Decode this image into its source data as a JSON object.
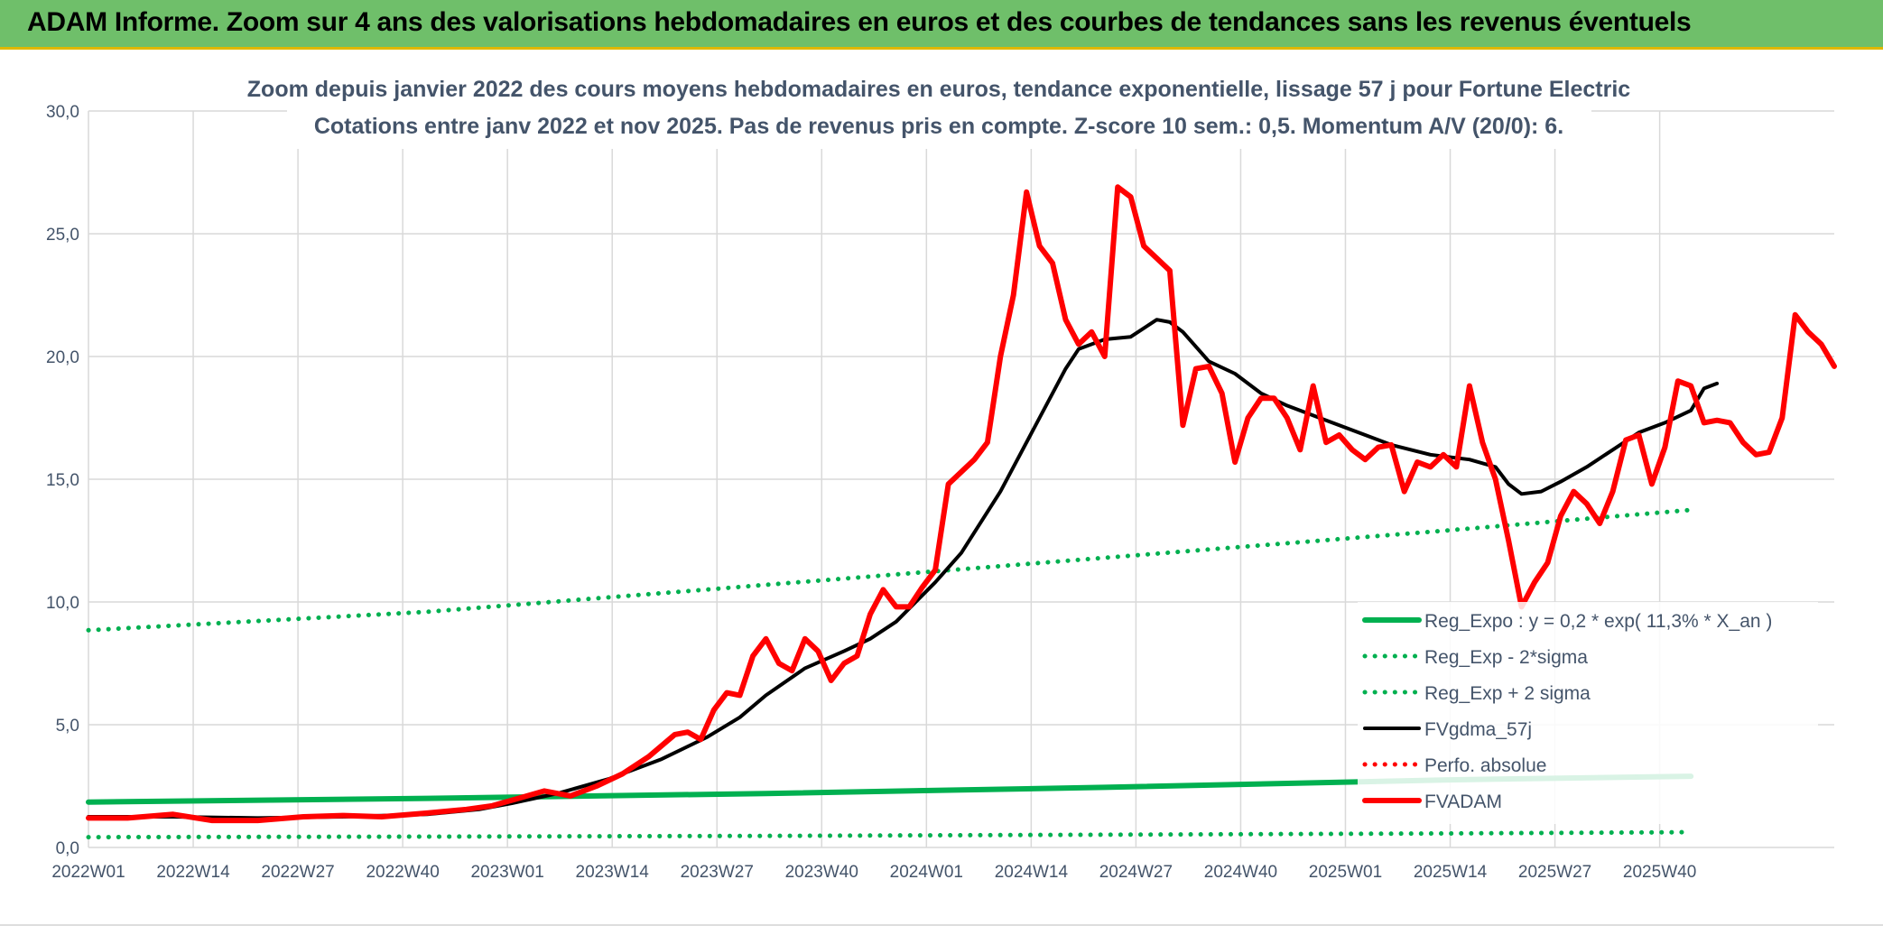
{
  "banner": {
    "title": "ADAM Informe. Zoom sur 4 ans des valorisations hebdomadaires en euros et des courbes de tendances sans les revenus éventuels"
  },
  "colors": {
    "banner_bg": "#6fbf6a",
    "reg_expo": "#00b050",
    "fvgdma": "#000000",
    "fvadam": "#ff0000",
    "perfo": "#ff0000",
    "grid": "#d9d9d9"
  },
  "chart_data": {
    "type": "line",
    "title": "Zoom depuis janvier 2022 des cours moyens hebdomadaires en euros, tendance exponentielle, lissage 57 j pour Fortune Electric",
    "subtitle": "Cotations entre janv 2022 et nov 2025. Pas de revenus pris en compte. Z-score 10 sem.: 0,5. Momentum A/V (20/0): 6.",
    "xlabel": "",
    "ylabel": "",
    "ylim": [
      0,
      30
    ],
    "yticks": [
      "0,0",
      "5,0",
      "10,0",
      "15,0",
      "20,0",
      "25,0",
      "30,0"
    ],
    "xticks": [
      "2022W01",
      "2022W14",
      "2022W27",
      "2022W40",
      "2023W01",
      "2023W14",
      "2023W27",
      "2023W40",
      "2024W01",
      "2024W14",
      "2024W27",
      "2024W40",
      "2025W01",
      "2025W14",
      "2025W27",
      "2025W40"
    ],
    "grid": true,
    "legend_position": "bottom-right",
    "legend": [
      "Reg_Expo : y = 0,2 * exp( 11,3% *  X_an )",
      "Reg_Exp - 2*sigma",
      "Reg_Exp + 2 sigma",
      "FVgdma_57j",
      "Perfo. absolue",
      "FVADAM"
    ],
    "series": [
      {
        "name": "Reg_Expo : y = 0,2 * exp( 11,3% *  X_an )",
        "style": "solid-thick",
        "color": "#00b050",
        "points": [
          [
            0,
            1.85
          ],
          [
            52,
            2.0
          ],
          [
            104,
            2.2
          ],
          [
            156,
            2.45
          ],
          [
            208,
            2.75
          ],
          [
            246,
            2.9
          ]
        ]
      },
      {
        "name": "Reg_Exp - 2*sigma",
        "style": "dotted",
        "color": "#00b050",
        "points": [
          [
            0,
            0.42
          ],
          [
            52,
            0.44
          ],
          [
            104,
            0.47
          ],
          [
            156,
            0.52
          ],
          [
            208,
            0.57
          ],
          [
            246,
            0.62
          ]
        ]
      },
      {
        "name": "Reg_Exp + 2 sigma",
        "style": "dotted",
        "color": "#00b050",
        "points": [
          [
            0,
            8.85
          ],
          [
            52,
            9.6
          ],
          [
            104,
            10.7
          ],
          [
            156,
            11.8
          ],
          [
            208,
            12.9
          ],
          [
            246,
            13.75
          ]
        ]
      },
      {
        "name": "FVgdma_57j",
        "style": "solid",
        "color": "#000000",
        "points": [
          [
            0,
            1.25
          ],
          [
            13,
            1.25
          ],
          [
            26,
            1.2
          ],
          [
            39,
            1.25
          ],
          [
            52,
            1.35
          ],
          [
            60,
            1.55
          ],
          [
            65,
            1.8
          ],
          [
            72,
            2.2
          ],
          [
            80,
            2.8
          ],
          [
            88,
            3.6
          ],
          [
            95,
            4.5
          ],
          [
            100,
            5.3
          ],
          [
            104,
            6.2
          ],
          [
            110,
            7.3
          ],
          [
            116,
            8.0
          ],
          [
            120,
            8.5
          ],
          [
            124,
            9.2
          ],
          [
            130,
            10.8
          ],
          [
            134,
            12.0
          ],
          [
            140,
            14.5
          ],
          [
            146,
            17.5
          ],
          [
            150,
            19.5
          ],
          [
            152,
            20.3
          ],
          [
            156,
            20.7
          ],
          [
            160,
            20.8
          ],
          [
            164,
            21.5
          ],
          [
            166,
            21.4
          ],
          [
            168,
            21.0
          ],
          [
            172,
            19.8
          ],
          [
            176,
            19.3
          ],
          [
            180,
            18.5
          ],
          [
            184,
            18.0
          ],
          [
            190,
            17.4
          ],
          [
            196,
            16.8
          ],
          [
            200,
            16.4
          ],
          [
            206,
            16.0
          ],
          [
            212,
            15.8
          ],
          [
            216,
            15.5
          ],
          [
            218,
            14.8
          ],
          [
            220,
            14.4
          ],
          [
            223,
            14.5
          ],
          [
            226,
            14.9
          ],
          [
            230,
            15.5
          ],
          [
            234,
            16.2
          ],
          [
            238,
            16.9
          ],
          [
            242,
            17.3
          ],
          [
            246,
            17.8
          ],
          [
            248,
            18.7
          ],
          [
            250,
            18.9
          ]
        ]
      },
      {
        "name": "FVADAM",
        "style": "solid-thick",
        "color": "#ff0000",
        "points": [
          [
            0,
            1.2
          ],
          [
            6,
            1.2
          ],
          [
            13,
            1.35
          ],
          [
            19,
            1.1
          ],
          [
            26,
            1.1
          ],
          [
            33,
            1.25
          ],
          [
            39,
            1.3
          ],
          [
            45,
            1.25
          ],
          [
            52,
            1.4
          ],
          [
            58,
            1.55
          ],
          [
            62,
            1.7
          ],
          [
            66,
            2.0
          ],
          [
            70,
            2.3
          ],
          [
            74,
            2.1
          ],
          [
            78,
            2.5
          ],
          [
            82,
            3.0
          ],
          [
            86,
            3.7
          ],
          [
            90,
            4.6
          ],
          [
            92,
            4.7
          ],
          [
            94,
            4.4
          ],
          [
            96,
            5.6
          ],
          [
            98,
            6.3
          ],
          [
            100,
            6.2
          ],
          [
            102,
            7.8
          ],
          [
            104,
            8.5
          ],
          [
            106,
            7.5
          ],
          [
            108,
            7.2
          ],
          [
            110,
            8.5
          ],
          [
            112,
            8.0
          ],
          [
            114,
            6.8
          ],
          [
            116,
            7.5
          ],
          [
            118,
            7.8
          ],
          [
            120,
            9.5
          ],
          [
            122,
            10.5
          ],
          [
            124,
            9.8
          ],
          [
            126,
            9.8
          ],
          [
            128,
            10.6
          ],
          [
            130,
            11.3
          ],
          [
            132,
            14.8
          ],
          [
            134,
            15.3
          ],
          [
            136,
            15.8
          ],
          [
            138,
            16.5
          ],
          [
            140,
            20.0
          ],
          [
            142,
            22.5
          ],
          [
            144,
            26.7
          ],
          [
            146,
            24.5
          ],
          [
            148,
            23.8
          ],
          [
            150,
            21.5
          ],
          [
            152,
            20.5
          ],
          [
            154,
            21.0
          ],
          [
            156,
            20.0
          ],
          [
            158,
            26.9
          ],
          [
            160,
            26.5
          ],
          [
            162,
            24.5
          ],
          [
            164,
            24.0
          ],
          [
            166,
            23.5
          ],
          [
            168,
            17.2
          ],
          [
            170,
            19.5
          ],
          [
            172,
            19.6
          ],
          [
            174,
            18.5
          ],
          [
            176,
            15.7
          ],
          [
            178,
            17.5
          ],
          [
            180,
            18.3
          ],
          [
            182,
            18.3
          ],
          [
            184,
            17.5
          ],
          [
            186,
            16.2
          ],
          [
            188,
            18.8
          ],
          [
            190,
            16.5
          ],
          [
            192,
            16.8
          ],
          [
            194,
            16.2
          ],
          [
            196,
            15.8
          ],
          [
            198,
            16.3
          ],
          [
            200,
            16.4
          ],
          [
            202,
            14.5
          ],
          [
            204,
            15.7
          ],
          [
            206,
            15.5
          ],
          [
            208,
            16.0
          ],
          [
            210,
            15.5
          ],
          [
            212,
            18.8
          ],
          [
            214,
            16.5
          ],
          [
            216,
            15.0
          ],
          [
            218,
            12.5
          ],
          [
            220,
            9.8
          ],
          [
            222,
            10.8
          ],
          [
            224,
            11.6
          ],
          [
            226,
            13.5
          ],
          [
            228,
            14.5
          ],
          [
            230,
            14.0
          ],
          [
            232,
            13.2
          ],
          [
            234,
            14.5
          ],
          [
            236,
            16.6
          ],
          [
            238,
            16.8
          ],
          [
            240,
            14.8
          ],
          [
            242,
            16.3
          ],
          [
            244,
            19.0
          ],
          [
            246,
            18.8
          ],
          [
            248,
            17.3
          ],
          [
            250,
            17.4
          ],
          [
            252,
            17.3
          ],
          [
            254,
            16.5
          ],
          [
            256,
            16.0
          ],
          [
            258,
            16.1
          ],
          [
            260,
            17.5
          ],
          [
            262,
            21.7
          ],
          [
            264,
            21.0
          ],
          [
            266,
            20.5
          ],
          [
            268,
            19.6
          ]
        ]
      },
      {
        "name": "Perfo. absolue",
        "style": "dotted",
        "color": "#ff0000",
        "points": []
      }
    ]
  }
}
